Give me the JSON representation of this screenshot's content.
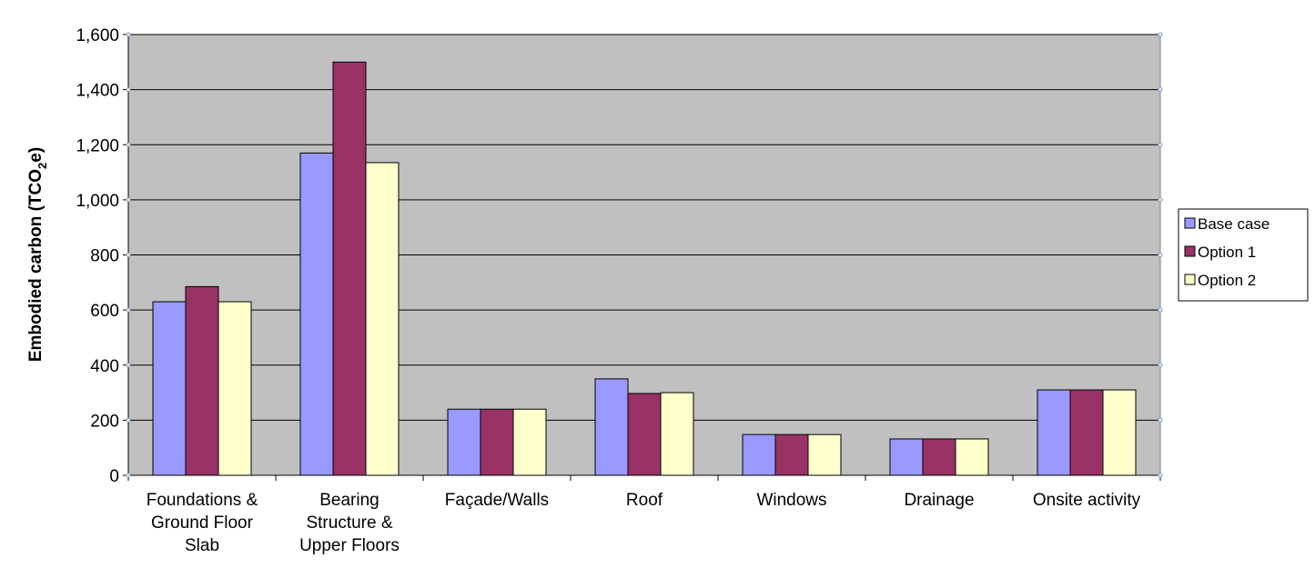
{
  "chart_data": {
    "type": "bar",
    "title": "",
    "xlabel": "",
    "ylabel": {
      "main": "Embodied carbon (TCO",
      "sub": "2",
      "tail": "e)"
    },
    "ylim": [
      0,
      1600
    ],
    "yticks": [
      0,
      200,
      400,
      600,
      800,
      1000,
      1200,
      1400,
      1600
    ],
    "ytick_labels": [
      "0",
      "200",
      "400",
      "600",
      "800",
      "1,000",
      "1,200",
      "1,400",
      "1,600"
    ],
    "grid": true,
    "legend_position": "right",
    "categories": [
      [
        "Foundations &",
        "Ground Floor",
        "Slab"
      ],
      [
        "Bearing",
        "Structure &",
        "Upper Floors"
      ],
      [
        "Façade/Walls"
      ],
      [
        "Roof"
      ],
      [
        "Windows"
      ],
      [
        "Drainage"
      ],
      [
        "Onsite activity"
      ]
    ],
    "series": [
      {
        "name": "Base case",
        "color": "#9999ff",
        "values": [
          630,
          1170,
          240,
          350,
          148,
          132,
          310
        ]
      },
      {
        "name": "Option 1",
        "color": "#993366",
        "values": [
          685,
          1500,
          240,
          297,
          148,
          132,
          310
        ]
      },
      {
        "name": "Option 2",
        "color": "#ffffcc",
        "values": [
          630,
          1135,
          240,
          300,
          148,
          132,
          310
        ]
      }
    ],
    "colors": {
      "plot_background": "#c0c0c0",
      "gridline": "#000000"
    }
  }
}
